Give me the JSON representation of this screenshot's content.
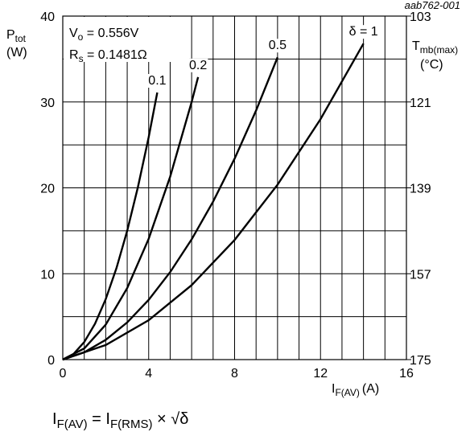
{
  "figure_id": "aab762-001",
  "chart_data": {
    "type": "line",
    "y_label": {
      "main": "P",
      "sub": "tot",
      "unit": "(W)"
    },
    "x_label": {
      "main": "I",
      "sub": "F(AV)",
      "unit": "(A)"
    },
    "y2_label": {
      "main": "T",
      "sub": "mb(max)",
      "unit": "(°C)"
    },
    "annotations": [
      {
        "main": "V",
        "sub": "o",
        "rest": " = 0.556V"
      },
      {
        "main": "R",
        "sub": "s",
        "rest": " = 0.1481Ω"
      }
    ],
    "formula": {
      "a": "I",
      "a_sub": "F(AV)",
      "b": " = I",
      "b_sub": "F(RMS)",
      "c": " × √δ"
    },
    "xlim": [
      0,
      16
    ],
    "xticks": [
      0,
      4,
      8,
      12,
      16
    ],
    "ylim": [
      0,
      40
    ],
    "yticks": [
      0,
      10,
      20,
      30,
      40
    ],
    "y2lim": [
      175,
      103
    ],
    "y2ticks": [
      175,
      157,
      139,
      121,
      103
    ],
    "grid": true,
    "series": [
      {
        "name": "0.1",
        "color": "#000000",
        "x": [
          0,
          0.5,
          1,
          1.5,
          2,
          2.5,
          3,
          3.5,
          4,
          4.4
        ],
        "values": [
          0,
          0.65,
          2.04,
          4.17,
          7.04,
          10.65,
          15.0,
          20.1,
          25.9,
          31.1
        ]
      },
      {
        "name": "0.2",
        "color": "#000000",
        "x": [
          0,
          1,
          2,
          3,
          4,
          5,
          6,
          6.3
        ],
        "values": [
          0,
          1.3,
          4.07,
          8.33,
          14.07,
          21.3,
          30.0,
          32.9
        ]
      },
      {
        "name": "0.5",
        "color": "#000000",
        "x": [
          0,
          1,
          2,
          3,
          4,
          5,
          6,
          7,
          8,
          9,
          10
        ],
        "values": [
          0,
          0.85,
          2.3,
          4.33,
          6.96,
          10.19,
          14.0,
          18.4,
          23.4,
          29.0,
          35.2
        ]
      },
      {
        "name": "δ = 1",
        "color": "#000000",
        "x": [
          0,
          2,
          4,
          6,
          8,
          10,
          12,
          14
        ],
        "values": [
          0,
          1.7,
          4.59,
          8.67,
          13.93,
          20.37,
          28.0,
          36.8
        ]
      }
    ]
  }
}
